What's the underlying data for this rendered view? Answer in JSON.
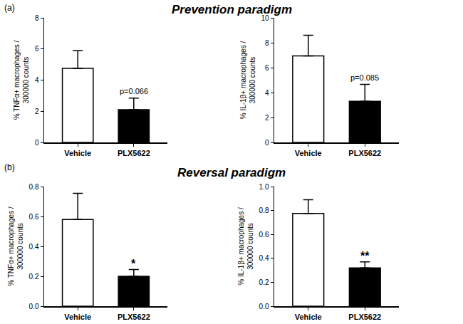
{
  "sections": [
    {
      "label": "(a)",
      "title": "Prevention paradigm"
    },
    {
      "label": "(b)",
      "title": "Reversal paradigm"
    }
  ],
  "chart_data": [
    {
      "type": "bar",
      "y_label": "% TNFα+ macrophages / 300000 counts",
      "categories": [
        "Vehicle",
        "PLX5622"
      ],
      "values": [
        4.75,
        2.1
      ],
      "errors": [
        1.15,
        0.75
      ],
      "colors": [
        "#ffffff",
        "#000000"
      ],
      "ylim": [
        0,
        8
      ],
      "yticks": [
        0,
        2,
        4,
        6,
        8
      ],
      "annotations": [
        {
          "text": "p=0.066",
          "category": "PLX5622"
        }
      ]
    },
    {
      "type": "bar",
      "y_label": "% IL-1β+ macrophages / 300000 counts",
      "categories": [
        "Vehicle",
        "PLX5622"
      ],
      "values": [
        6.95,
        3.3
      ],
      "errors": [
        1.65,
        1.35
      ],
      "colors": [
        "#ffffff",
        "#000000"
      ],
      "ylim": [
        0,
        10
      ],
      "yticks": [
        0,
        2,
        4,
        6,
        8,
        10
      ],
      "annotations": [
        {
          "text": "p=0.085",
          "category": "PLX5622"
        }
      ]
    },
    {
      "type": "bar",
      "y_label": "% TNFα+ macrophages / 300000 counts",
      "categories": [
        "Vehicle",
        "PLX5622"
      ],
      "values": [
        0.58,
        0.2
      ],
      "errors": [
        0.175,
        0.045
      ],
      "colors": [
        "#ffffff",
        "#000000"
      ],
      "ylim": [
        0,
        0.8
      ],
      "yticks": [
        {
          "value": 0,
          "label": "0.0"
        },
        0.2,
        0.4,
        0.6,
        0.8
      ],
      "annotations": [
        {
          "text": "*",
          "category": "PLX5622"
        }
      ]
    },
    {
      "type": "bar",
      "y_label": "% IL-1β+ macrophages / 300000 counts",
      "categories": [
        "Vehicle",
        "PLX5622"
      ],
      "values": [
        0.775,
        0.32
      ],
      "errors": [
        0.115,
        0.05
      ],
      "colors": [
        "#ffffff",
        "#000000"
      ],
      "ylim": [
        0,
        1
      ],
      "yticks": [
        {
          "value": 0,
          "label": "0.0"
        },
        0.2,
        0.4,
        0.6,
        0.8,
        {
          "value": 1,
          "label": "1.0"
        }
      ],
      "annotations": [
        {
          "text": "**",
          "category": "PLX5622"
        }
      ]
    }
  ]
}
